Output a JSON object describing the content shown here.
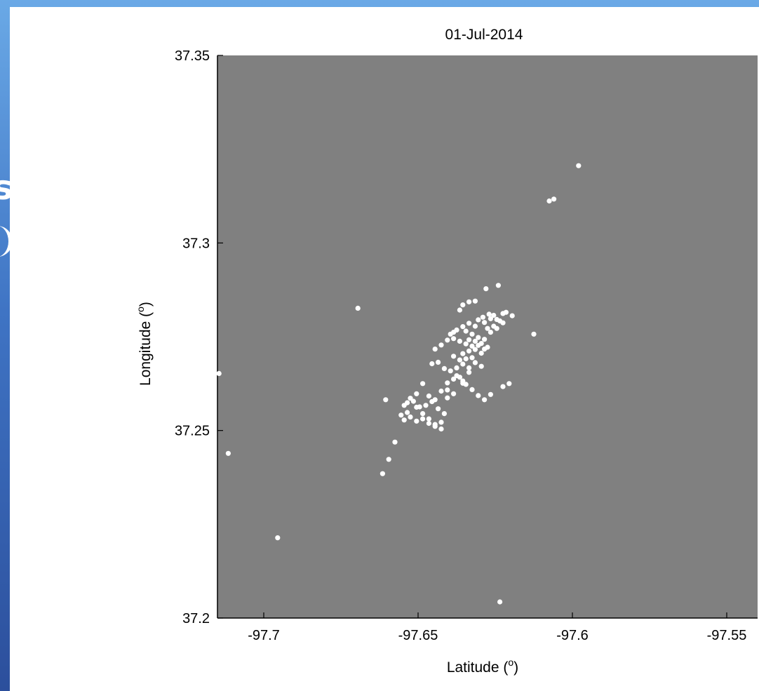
{
  "chart_data": {
    "type": "scatter",
    "title": "01-Jul-2014",
    "xlabel": "Latitude",
    "ylabel": "Longitude",
    "axis_unit_superscript": "o",
    "xlim": [
      -97.715,
      -97.54
    ],
    "ylim": [
      37.2,
      37.35
    ],
    "xticks": [
      -97.7,
      -97.65,
      -97.6,
      -97.55
    ],
    "xtick_labels": [
      "-97.7",
      "-97.65",
      "-97.6",
      "-97.55"
    ],
    "yticks": [
      37.2,
      37.25,
      37.3,
      37.35
    ],
    "ytick_labels": [
      "37.2",
      "37.25",
      "37.3",
      "37.35"
    ],
    "grid": false,
    "colors": {
      "plot_background": "#808080",
      "marker": "#ffffff"
    },
    "series": [
      {
        "x": [
          -97.598,
          -97.606,
          -97.6075,
          -97.624,
          -97.628,
          -97.6315,
          -97.6335,
          -97.6355,
          -97.6365,
          -97.6255,
          -97.6225,
          -97.6215,
          -97.6195,
          -97.627,
          -97.629,
          -97.6245,
          -97.6235,
          -97.6225,
          -97.6265,
          -97.6255,
          -97.6285,
          -97.6305,
          -97.6275,
          -97.6315,
          -97.6335,
          -97.6345,
          -97.6355,
          -97.6375,
          -97.6385,
          -97.6395,
          -97.6325,
          -97.6305,
          -97.6285,
          -97.6265,
          -97.6245,
          -97.6335,
          -97.6315,
          -97.6295,
          -97.6275,
          -97.6305,
          -97.6285,
          -97.6325,
          -97.6345,
          -97.6365,
          -97.6385,
          -97.6405,
          -97.6425,
          -97.6445,
          -97.6355,
          -97.6335,
          -97.6315,
          -97.6295,
          -97.6345,
          -97.6325,
          -97.6365,
          -97.6385,
          -97.6355,
          -97.6375,
          -97.6315,
          -97.6295,
          -97.6335,
          -97.6355,
          -97.6365,
          -97.6385,
          -97.6405,
          -97.6435,
          -97.6455,
          -97.6415,
          -97.6395,
          -97.6375,
          -97.6355,
          -97.6425,
          -97.6445,
          -97.6465,
          -97.6485,
          -97.6505,
          -97.6525,
          -97.6545,
          -97.6535,
          -97.6515,
          -97.6495,
          -97.6475,
          -97.6455,
          -97.6435,
          -97.6415,
          -97.6505,
          -97.6485,
          -97.6465,
          -97.6445,
          -97.6425,
          -97.6405,
          -97.6385,
          -97.6535,
          -97.6545,
          -97.6525,
          -97.6505,
          -97.6485,
          -97.6465,
          -97.6445,
          -97.6425,
          -97.6405,
          -97.6555,
          -97.6575,
          -97.6595,
          -97.6615,
          -97.6605,
          -97.6345,
          -97.6325,
          -97.6305,
          -97.6285,
          -97.6265,
          -97.6225,
          -97.6205,
          -97.6695,
          -97.7145,
          -97.7115,
          -97.6955,
          -97.6235,
          -97.6125,
          -97.6335
        ],
        "y": [
          37.3206,
          37.3117,
          37.3112,
          37.2887,
          37.2878,
          37.2845,
          37.2843,
          37.2835,
          37.2821,
          37.2807,
          37.2812,
          37.2815,
          37.2806,
          37.281,
          37.2802,
          37.2796,
          37.2792,
          37.2787,
          37.2798,
          37.2778,
          37.2788,
          37.2795,
          37.2772,
          37.2778,
          37.2786,
          37.2765,
          37.2777,
          37.2768,
          37.2762,
          37.2757,
          37.2757,
          37.2748,
          37.2743,
          37.2762,
          37.2772,
          37.2742,
          37.2738,
          37.2732,
          37.2722,
          37.2727,
          37.2717,
          37.2725,
          37.2731,
          37.2738,
          37.2745,
          37.2741,
          37.2728,
          37.2717,
          37.2705,
          37.2712,
          37.2716,
          37.2706,
          37.2691,
          37.2694,
          37.2688,
          37.2698,
          37.2677,
          37.2667,
          37.2681,
          37.2671,
          37.2655,
          37.2632,
          37.2642,
          37.2637,
          37.2627,
          37.2682,
          37.2678,
          37.2665,
          37.2659,
          37.2646,
          37.2626,
          37.2605,
          37.2582,
          37.2592,
          37.2625,
          37.2598,
          37.2586,
          37.2567,
          37.2574,
          37.2578,
          37.2563,
          37.2567,
          37.2577,
          37.2558,
          37.2545,
          37.2562,
          37.2545,
          37.2531,
          37.2516,
          37.2522,
          37.2608,
          37.2598,
          37.2548,
          37.2528,
          37.2536,
          37.2525,
          37.2531,
          37.2519,
          37.2511,
          37.2504,
          37.2587,
          37.2541,
          37.2469,
          37.2423,
          37.2385,
          37.2582,
          37.2623,
          37.2609,
          37.2593,
          37.2582,
          37.2596,
          37.2617,
          37.2625,
          37.2826,
          37.2652,
          37.2439,
          37.2214,
          37.2043,
          37.2757,
          37.2667
        ]
      }
    ]
  }
}
